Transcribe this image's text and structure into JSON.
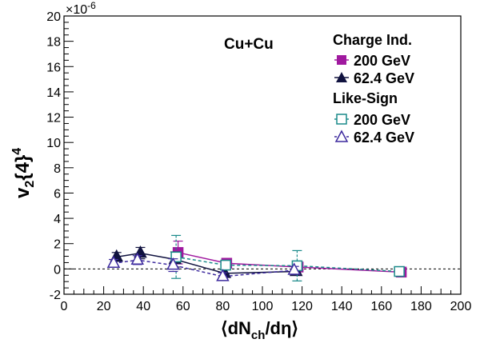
{
  "chart_data": {
    "type": "scatter",
    "title": "",
    "xlabel_parts": {
      "pre": "⟨dN",
      "sub": "ch",
      "post": "/dη⟩"
    },
    "ylabel_parts": {
      "base": "v",
      "sub": "2",
      "mid": "{4}",
      "sup": "4"
    },
    "y_multiplier": {
      "base": "×10",
      "exp": "-6"
    },
    "xlim": [
      0,
      200
    ],
    "ylim": [
      -2,
      20
    ],
    "x_ticks": [
      0,
      20,
      40,
      60,
      80,
      100,
      120,
      140,
      160,
      180,
      200
    ],
    "y_ticks": [
      -2,
      0,
      2,
      4,
      6,
      8,
      10,
      12,
      14,
      16,
      18,
      20
    ],
    "grid": false,
    "reference_line_y": 0,
    "system_label": "Cu+Cu",
    "legend": {
      "position": "top-right",
      "group1": "Charge Ind.",
      "group2": "Like-Sign"
    },
    "series": [
      {
        "name": "200 GeV",
        "group": "Charge Ind.",
        "marker": "filled-square",
        "line": "solid",
        "color": "#a0199f",
        "points": [
          {
            "x": 57.5,
            "y": 1.3,
            "err": 0.9
          },
          {
            "x": 82,
            "y": 0.45,
            "err": 0.2
          },
          {
            "x": 118,
            "y": 0.15,
            "err": 0.2
          },
          {
            "x": 170,
            "y": -0.25,
            "err": 0.15
          }
        ]
      },
      {
        "name": "62.4 GeV",
        "group": "Charge Ind.",
        "marker": "filled-triangle",
        "line": "solid",
        "color": "#10123f",
        "points": [
          {
            "x": 26.5,
            "y": 0.95,
            "err": 0.35
          },
          {
            "x": 38.5,
            "y": 1.25,
            "err": 0.45
          },
          {
            "x": 56,
            "y": 0.75,
            "err": 0.6
          },
          {
            "x": 81,
            "y": -0.35,
            "err": 0.3
          },
          {
            "x": 117,
            "y": -0.2,
            "err": 0.3
          }
        ]
      },
      {
        "name": "200 GeV",
        "group": "Like-Sign",
        "marker": "open-square",
        "line": "dashed",
        "color": "#1a8a8a",
        "points": [
          {
            "x": 56.5,
            "y": 0.95,
            "err": 1.7
          },
          {
            "x": 81.5,
            "y": 0.3,
            "err": 0.35
          },
          {
            "x": 117.5,
            "y": 0.25,
            "err": 1.2
          },
          {
            "x": 169,
            "y": -0.2,
            "err": 0.2
          }
        ]
      },
      {
        "name": "62.4 GeV",
        "group": "Like-Sign",
        "marker": "open-triangle",
        "line": "dashed",
        "color": "#3d2a9e",
        "points": [
          {
            "x": 25,
            "y": 0.45,
            "err": 0.3
          },
          {
            "x": 37,
            "y": 0.7,
            "err": 0.35
          },
          {
            "x": 55,
            "y": 0.3,
            "err": 0.5
          },
          {
            "x": 80,
            "y": -0.6,
            "err": 0.3
          },
          {
            "x": 116,
            "y": -0.1,
            "err": 0.3
          }
        ]
      }
    ]
  }
}
